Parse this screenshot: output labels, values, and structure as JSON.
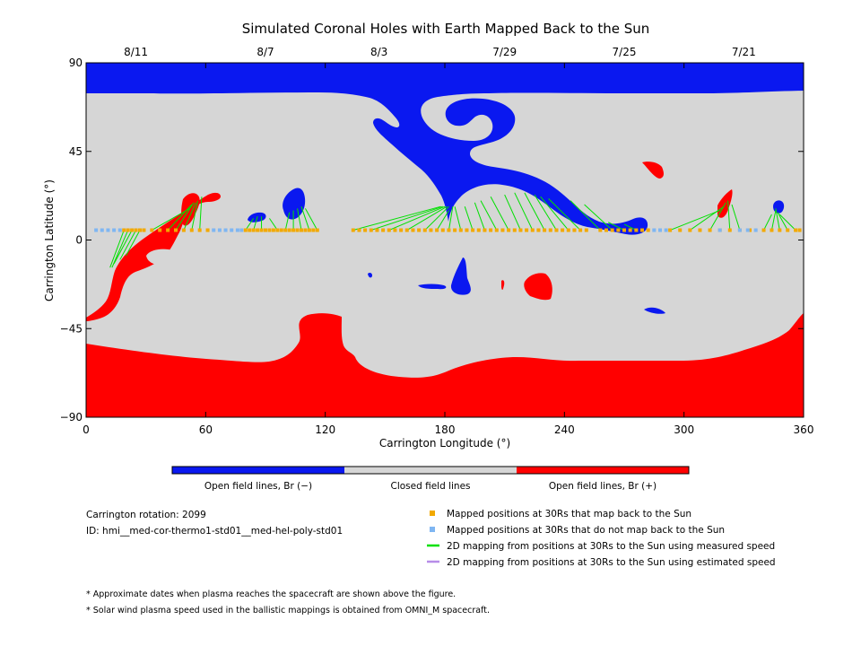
{
  "chart_data": {
    "type": "map",
    "title": "Simulated Coronal Holes with Earth Mapped Back to the Sun",
    "xlabel": "Carrington Longitude (°)",
    "ylabel": "Carrington Latitude (°)",
    "xlim": [
      0,
      360
    ],
    "ylim": [
      -90,
      90
    ],
    "x_ticks": [
      "0",
      "60",
      "120",
      "180",
      "240",
      "300",
      "360"
    ],
    "y_ticks": [
      "90",
      "45",
      "0",
      "−45",
      "−90"
    ],
    "top_axis_dates": [
      {
        "label": "8/11",
        "lon": 25
      },
      {
        "label": "8/7",
        "lon": 90
      },
      {
        "label": "8/3",
        "lon": 147
      },
      {
        "label": "7/29",
        "lon": 210
      },
      {
        "label": "7/25",
        "lon": 270
      },
      {
        "label": "7/21",
        "lon": 330
      }
    ],
    "colors": {
      "open_negative": "#0a18f0",
      "closed": "#d6d6d6",
      "open_positive": "#ff0000",
      "mapped": "#f2a900",
      "not_mapped": "#7fb6f2",
      "measured_speed": "#00e000",
      "estimated_speed": "#b78ce8"
    },
    "colorbar": [
      {
        "label": "Open field lines, Br (−)",
        "color": "#0a18f0"
      },
      {
        "label": "Closed field lines",
        "color": "#d6d6d6"
      },
      {
        "label": "Open field lines, Br (+)",
        "color": "#ff0000"
      }
    ],
    "carrington_rotation": "Carrington rotation: 2099",
    "model_id": "ID: hmi__med-cor-thermo1-std01__med-hel-poly-std01",
    "legend": [
      {
        "label": "Mapped positions at 30Rs that map back to the Sun",
        "marker": "square",
        "color": "#f2a900"
      },
      {
        "label": "Mapped positions at 30Rs that do not map back to the Sun",
        "marker": "square",
        "color": "#7fb6f2"
      },
      {
        "label": "2D mapping from positions at 30Rs to the Sun using measured speed",
        "marker": "line",
        "color": "#00e000"
      },
      {
        "label": "2D mapping from positions at 30Rs to the Sun using estimated speed",
        "marker": "line",
        "color": "#b78ce8"
      }
    ],
    "notes": [
      "* Approximate dates when plasma reaches the spacecraft are shown above the figure.",
      "* Solar wind plasma speed used in the ballistic mappings is obtained from OMNI_M spacecraft."
    ],
    "mapped_points": {
      "lat": 5,
      "mapped_lon": [
        19,
        21,
        23,
        25,
        27,
        29,
        33,
        37,
        41,
        45,
        49,
        53,
        57,
        61,
        80,
        82,
        84,
        86,
        88,
        90,
        92,
        94,
        96,
        98,
        100,
        102,
        104,
        106,
        108,
        110,
        112,
        114,
        116,
        134,
        137,
        140,
        143,
        146,
        149,
        152,
        155,
        158,
        161,
        164,
        167,
        170,
        173,
        176,
        179,
        182,
        185,
        188,
        191,
        194,
        197,
        200,
        203,
        206,
        209,
        212,
        215,
        218,
        221,
        224,
        227,
        230,
        233,
        236,
        239,
        242,
        245,
        248,
        251,
        258,
        261,
        264,
        267,
        270,
        273,
        276,
        279,
        282,
        293,
        298,
        303,
        308,
        313,
        318,
        323,
        328,
        333,
        340,
        344,
        348,
        352,
        356,
        358
      ],
      "not_mapped_lon": [
        5,
        8,
        11,
        14,
        17,
        64,
        67,
        70,
        73,
        76,
        78,
        285,
        288,
        291,
        318,
        328,
        332,
        336
      ]
    },
    "measured_speed_mappings": [
      {
        "from_lon": 19,
        "to": [
          12,
          -14
        ]
      },
      {
        "from_lon": 21,
        "to": [
          13,
          -14
        ]
      },
      {
        "from_lon": 23,
        "to": [
          14,
          -12
        ]
      },
      {
        "from_lon": 25,
        "to": [
          17,
          -10
        ]
      },
      {
        "from_lon": 27,
        "to": [
          20,
          -8
        ]
      },
      {
        "from_lon": 33,
        "to": [
          52,
          16
        ]
      },
      {
        "from_lon": 41,
        "to": [
          53,
          18
        ]
      },
      {
        "from_lon": 45,
        "to": [
          54,
          19
        ]
      },
      {
        "from_lon": 49,
        "to": [
          55,
          19
        ]
      },
      {
        "from_lon": 53,
        "to": [
          56,
          20
        ]
      },
      {
        "from_lon": 57,
        "to": [
          58,
          22
        ]
      },
      {
        "from_lon": 80,
        "to": [
          84,
          11
        ]
      },
      {
        "from_lon": 84,
        "to": [
          86,
          12
        ]
      },
      {
        "from_lon": 88,
        "to": [
          88,
          12
        ]
      },
      {
        "from_lon": 96,
        "to": [
          92,
          11
        ]
      },
      {
        "from_lon": 100,
        "to": [
          102,
          14
        ]
      },
      {
        "from_lon": 104,
        "to": [
          104,
          15
        ]
      },
      {
        "from_lon": 108,
        "to": [
          106,
          16
        ]
      },
      {
        "from_lon": 112,
        "to": [
          108,
          17
        ]
      },
      {
        "from_lon": 116,
        "to": [
          110,
          16
        ]
      },
      {
        "from_lon": 134,
        "to": [
          178,
          17
        ]
      },
      {
        "from_lon": 143,
        "to": [
          179,
          17
        ]
      },
      {
        "from_lon": 152,
        "to": [
          180,
          17
        ]
      },
      {
        "from_lon": 161,
        "to": [
          181,
          17
        ]
      },
      {
        "from_lon": 170,
        "to": [
          182,
          17
        ]
      },
      {
        "from_lon": 176,
        "to": [
          182,
          15
        ]
      },
      {
        "from_lon": 182,
        "to": [
          184,
          17
        ]
      },
      {
        "from_lon": 188,
        "to": [
          185,
          17
        ]
      },
      {
        "from_lon": 194,
        "to": [
          190,
          17
        ]
      },
      {
        "from_lon": 200,
        "to": [
          195,
          19
        ]
      },
      {
        "from_lon": 206,
        "to": [
          198,
          20
        ]
      },
      {
        "from_lon": 212,
        "to": [
          203,
          22
        ]
      },
      {
        "from_lon": 218,
        "to": [
          210,
          23
        ]
      },
      {
        "from_lon": 224,
        "to": [
          215,
          24
        ]
      },
      {
        "from_lon": 230,
        "to": [
          220,
          24
        ]
      },
      {
        "from_lon": 236,
        "to": [
          225,
          23
        ]
      },
      {
        "from_lon": 242,
        "to": [
          228,
          22
        ]
      },
      {
        "from_lon": 248,
        "to": [
          232,
          21
        ]
      },
      {
        "from_lon": 258,
        "to": [
          243,
          20
        ]
      },
      {
        "from_lon": 264,
        "to": [
          250,
          18
        ]
      },
      {
        "from_lon": 270,
        "to": [
          262,
          9
        ]
      },
      {
        "from_lon": 276,
        "to": [
          270,
          8
        ]
      },
      {
        "from_lon": 293,
        "to": [
          318,
          15
        ]
      },
      {
        "from_lon": 303,
        "to": [
          320,
          17
        ]
      },
      {
        "from_lon": 313,
        "to": [
          321,
          19
        ]
      },
      {
        "from_lon": 323,
        "to": [
          322,
          20
        ]
      },
      {
        "from_lon": 328,
        "to": [
          324,
          18
        ]
      },
      {
        "from_lon": 340,
        "to": [
          344,
          13
        ]
      },
      {
        "from_lon": 344,
        "to": [
          346,
          15
        ]
      },
      {
        "from_lon": 348,
        "to": [
          346,
          16
        ]
      },
      {
        "from_lon": 352,
        "to": [
          347,
          14
        ]
      },
      {
        "from_lon": 356,
        "to": [
          348,
          13
        ]
      }
    ]
  }
}
